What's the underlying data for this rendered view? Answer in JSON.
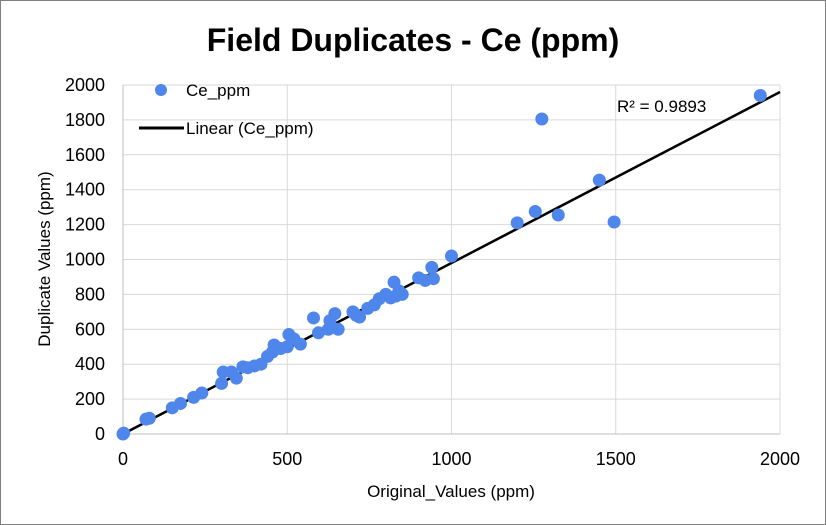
{
  "chart_data": {
    "type": "scatter",
    "title": "Field Duplicates  - Ce (ppm)",
    "xlabel": "Original_Values (ppm)",
    "ylabel": "Duplicate Values (ppm)",
    "xlim": [
      0,
      2000
    ],
    "ylim": [
      0,
      2000
    ],
    "xticks": [
      "0",
      "500",
      "1000",
      "1500",
      "2000"
    ],
    "yticks": [
      "0",
      "200",
      "400",
      "600",
      "800",
      "1000",
      "1200",
      "1400",
      "1600",
      "1800",
      "2000"
    ],
    "grid": true,
    "legend_position": "top-left",
    "series": [
      {
        "name": "Ce_ppm",
        "color": "#4f86ec",
        "points": [
          [
            0,
            0
          ],
          [
            2,
            5
          ],
          [
            70,
            85
          ],
          [
            80,
            90
          ],
          [
            150,
            150
          ],
          [
            175,
            175
          ],
          [
            215,
            210
          ],
          [
            240,
            235
          ],
          [
            300,
            290
          ],
          [
            305,
            355
          ],
          [
            330,
            355
          ],
          [
            345,
            320
          ],
          [
            365,
            385
          ],
          [
            380,
            380
          ],
          [
            400,
            390
          ],
          [
            420,
            400
          ],
          [
            440,
            445
          ],
          [
            455,
            470
          ],
          [
            460,
            510
          ],
          [
            480,
            490
          ],
          [
            500,
            500
          ],
          [
            505,
            570
          ],
          [
            520,
            545
          ],
          [
            540,
            515
          ],
          [
            580,
            665
          ],
          [
            595,
            580
          ],
          [
            625,
            600
          ],
          [
            630,
            650
          ],
          [
            645,
            690
          ],
          [
            655,
            600
          ],
          [
            700,
            700
          ],
          [
            710,
            680
          ],
          [
            720,
            670
          ],
          [
            745,
            720
          ],
          [
            765,
            740
          ],
          [
            780,
            775
          ],
          [
            800,
            800
          ],
          [
            815,
            780
          ],
          [
            825,
            870
          ],
          [
            830,
            790
          ],
          [
            840,
            820
          ],
          [
            850,
            800
          ],
          [
            900,
            895
          ],
          [
            920,
            880
          ],
          [
            940,
            955
          ],
          [
            945,
            890
          ],
          [
            1000,
            1020
          ],
          [
            1200,
            1210
          ],
          [
            1255,
            1275
          ],
          [
            1275,
            1805
          ],
          [
            1325,
            1255
          ],
          [
            1450,
            1455
          ],
          [
            1495,
            1215
          ],
          [
            1940,
            1940
          ]
        ]
      }
    ],
    "trendline": {
      "name": "Linear (Ce_ppm)",
      "color": "#000000",
      "x": [
        0,
        2000
      ],
      "y": [
        0,
        1960
      ]
    },
    "annotation": "R² = 0.9893"
  }
}
